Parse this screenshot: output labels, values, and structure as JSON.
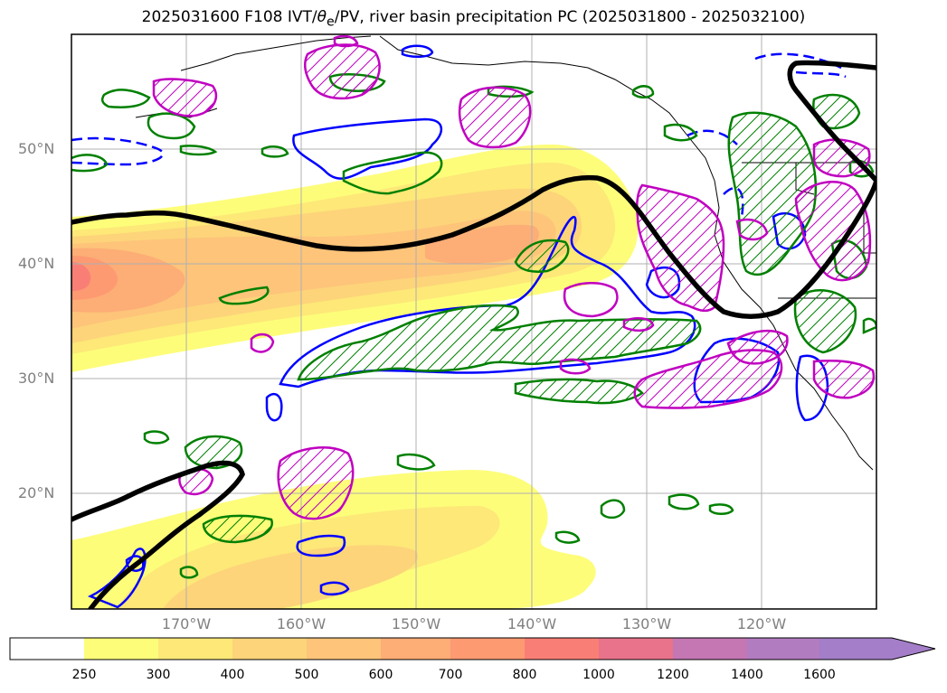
{
  "title": {
    "prefix": "2025031600 F108 IVT/",
    "theta": "θ",
    "theta_sub": "e",
    "suffix": "/PV, river basin precipitation PC (2025031800 - 2025032100)"
  },
  "axes": {
    "lat_labels": [
      "50°N",
      "40°N",
      "30°N",
      "20°N"
    ],
    "lon_labels": [
      "170°W",
      "160°W",
      "150°W",
      "140°W",
      "130°W",
      "120°W"
    ]
  },
  "colorbar": {
    "levels": [
      "250",
      "300",
      "400",
      "500",
      "600",
      "700",
      "800",
      "1000",
      "1200",
      "1400",
      "1600"
    ],
    "colors": [
      "#ffffff",
      "#fdfd7a",
      "#fde878",
      "#fdd47a",
      "#fdc47a",
      "#fdad76",
      "#fd9a72",
      "#f97f76",
      "#e8738a",
      "#c577b4",
      "#b27cc1",
      "#a47ec8"
    ]
  },
  "legend_colors": {
    "pv_contour": "#000000",
    "positive_pc_green": "#008000",
    "negative_pc_blue": "#0000ff",
    "magenta": "#c000c0"
  }
}
